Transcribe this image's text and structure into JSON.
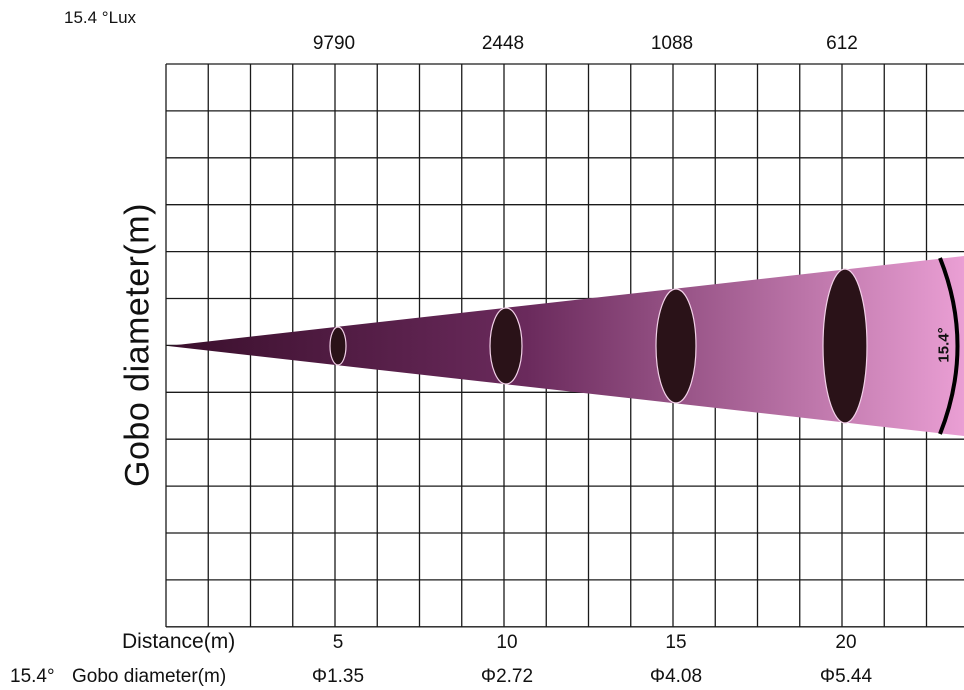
{
  "lux": {
    "title": "15.4 °Lux",
    "values": [
      "9790",
      "2448",
      "1088",
      "612"
    ]
  },
  "y_axis_label": "Gobo diameter(m)",
  "distance": {
    "label": "Distance(m)",
    "values": [
      "5",
      "10",
      "15",
      "20"
    ]
  },
  "footer": {
    "angle": "15.4°",
    "label": "Gobo diameter(m)",
    "values": [
      "Φ1.35",
      "Φ2.72",
      "Φ4.08",
      "Φ5.44"
    ]
  },
  "beam_angle_label": "15.4°",
  "colors": {
    "beam_start": "#3a0f2c",
    "beam_end": "#e89ad0",
    "gobo": "#2a1218",
    "grid": "#1a1a1a"
  }
}
